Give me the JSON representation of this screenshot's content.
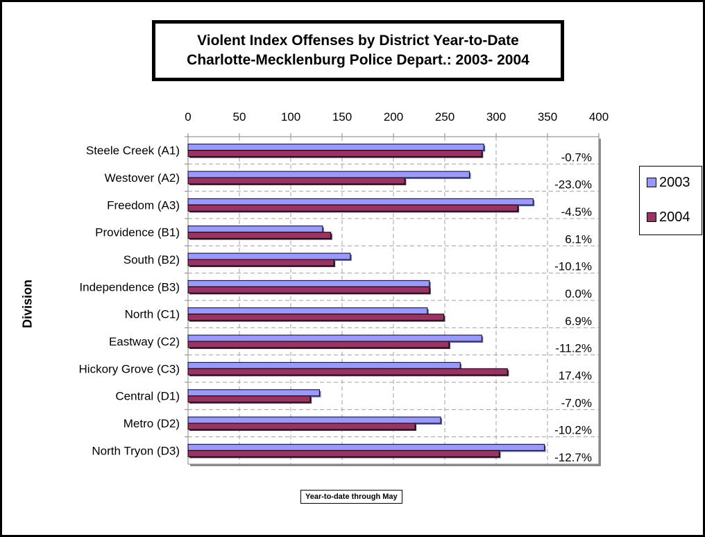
{
  "chart_data": {
    "type": "bar",
    "orientation": "horizontal",
    "title": [
      "Violent Index Offenses by District Year-to-Date",
      "Charlotte-Mecklenburg Police Depart.: 2003- 2004"
    ],
    "xlabel": "Year-to-date through May",
    "ylabel": "Division",
    "xlim": [
      0,
      400
    ],
    "x_ticks": [
      "0",
      "50",
      "100",
      "150",
      "200",
      "250",
      "300",
      "350",
      "400"
    ],
    "gridlines": "dashed",
    "legend_position": "right",
    "categories": [
      "Steele Creek (A1)",
      "Westover (A2)",
      "Freedom (A3)",
      "Providence (B1)",
      "South (B2)",
      "Independence (B3)",
      "North (C1)",
      "Eastway (C2)",
      "Hickory Grove (C3)",
      "Central (D1)",
      "Metro (D2)",
      "North Tryon (D3)"
    ],
    "series": [
      {
        "name": "2003",
        "color": "#9999ff",
        "values": [
          288,
          274,
          336,
          131,
          158,
          235,
          233,
          286,
          265,
          128,
          246,
          347
        ]
      },
      {
        "name": "2004",
        "color": "#993366",
        "values": [
          286,
          211,
          321,
          139,
          142,
          235,
          249,
          254,
          311,
          119,
          221,
          303
        ]
      }
    ],
    "annotations": [
      "-0.7%",
      "-23.0%",
      "-4.5%",
      "6.1%",
      "-10.1%",
      "0.0%",
      "6.9%",
      "-11.2%",
      "17.4%",
      "-7.0%",
      "-10.2%",
      "-12.7%"
    ]
  }
}
